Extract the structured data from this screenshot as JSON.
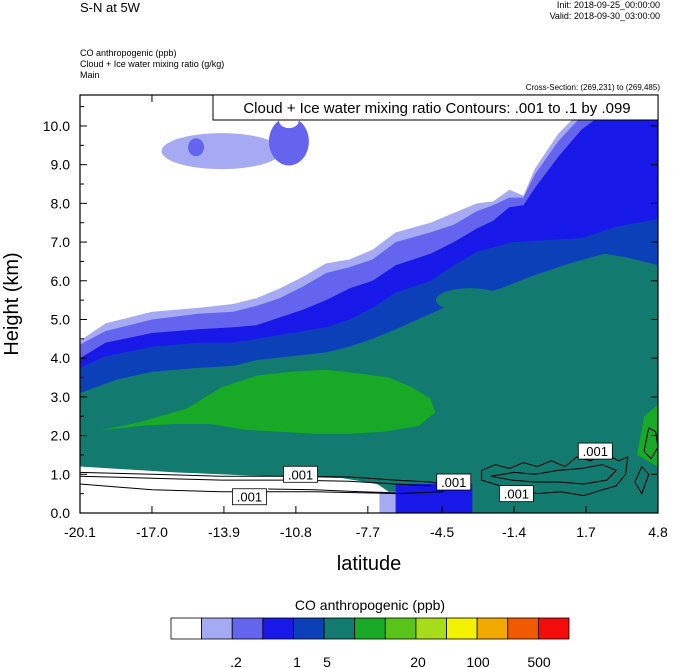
{
  "header": {
    "title": "S-N at 5W",
    "init": "Init: 2018-09-25_00:00:00",
    "valid": "Valid: 2018-09-30_03:00:00",
    "field1": "CO anthropogenic   (ppb)",
    "field2": "Cloud + Ice water mixing ratio   (g/kg)",
    "field3": "Main",
    "cross_section": "Cross-Section: (269,231) to (269,485)"
  },
  "chart_data": {
    "type": "heatmap",
    "title": "Cloud + Ice water mixing ratio Contours: .001 to .1 by .099",
    "xlabel": "latitude",
    "ylabel": "Height (km)",
    "xlim": [
      -20.1,
      4.8
    ],
    "ylim": [
      0.0,
      10.8
    ],
    "x_ticks": [
      "-20.1",
      "-17.0",
      "-13.9",
      "-10.8",
      "-7.7",
      "-4.5",
      "-1.4",
      "1.7",
      "4.8"
    ],
    "y_ticks": [
      "0.0",
      "1.0",
      "2.0",
      "3.0",
      "4.0",
      "5.0",
      "6.0",
      "7.0",
      "8.0",
      "9.0",
      "10.0"
    ],
    "contour_labels": [
      ".001",
      ".001",
      ".001",
      ".001",
      ".001"
    ],
    "colorbar": {
      "title": "CO anthropogenic  (ppb)",
      "colors": [
        "#ffffff",
        "#a6aaf2",
        "#6464ee",
        "#1818e8",
        "#0c40b8",
        "#127a6e",
        "#18aa26",
        "#5ac31a",
        "#a6dc1a",
        "#f2f202",
        "#f2aa02",
        "#f25a02",
        "#f20c0c"
      ],
      "tick_labels": [
        ".2",
        "1",
        "5",
        "20",
        "100",
        "500"
      ]
    },
    "layers": [
      {
        "level": "0.2-0.5 ppb",
        "color": "#a6aaf2",
        "x": [
          -20.1,
          -19.0,
          -17.0,
          -15.0,
          -13.5,
          -12.5,
          -11.5,
          -10.5,
          -9.5,
          -8.5,
          -7.5,
          -6.5,
          -5.0,
          -4.0,
          -3.0,
          -2.3,
          -1.6,
          -1.0,
          -0.5,
          0.5,
          1.5,
          2.5,
          4.8
        ],
        "y": [
          4.45,
          4.9,
          5.2,
          5.3,
          5.4,
          5.55,
          5.8,
          6.1,
          6.45,
          6.55,
          6.8,
          7.25,
          7.5,
          7.75,
          8.0,
          8.05,
          8.35,
          8.2,
          8.9,
          9.8,
          10.4,
          10.8,
          10.8
        ]
      },
      {
        "level": "0.5-1 ppb",
        "color": "#6464ee",
        "x": [
          -20.1,
          -19.0,
          -17.0,
          -15.0,
          -13.5,
          -12.5,
          -11.5,
          -10.5,
          -9.5,
          -8.5,
          -7.5,
          -6.5,
          -5.0,
          -4.0,
          -3.0,
          -2.3,
          -1.6,
          -1.0,
          -0.5,
          0.5,
          1.5,
          2.5,
          4.8
        ],
        "y": [
          4.35,
          4.7,
          5.0,
          5.15,
          5.2,
          5.35,
          5.55,
          5.85,
          6.2,
          6.35,
          6.55,
          7.0,
          7.25,
          7.45,
          7.8,
          7.95,
          8.15,
          8.15,
          8.75,
          9.6,
          10.25,
          10.7,
          10.8
        ]
      },
      {
        "level": "1-2 ppb",
        "color": "#1818e8",
        "x": [
          -20.1,
          -19.0,
          -17.0,
          -15.0,
          -13.5,
          -12.5,
          -11.5,
          -10.5,
          -9.5,
          -8.5,
          -7.5,
          -6.5,
          -5.0,
          -4.0,
          -3.0,
          -2.3,
          -1.6,
          -1.0,
          -0.5,
          0.5,
          1.5,
          2.5,
          4.8
        ],
        "y": [
          4.0,
          4.4,
          4.65,
          4.75,
          4.8,
          4.85,
          5.05,
          5.25,
          5.5,
          5.8,
          6.0,
          6.4,
          6.7,
          7.0,
          7.35,
          7.55,
          7.9,
          7.95,
          8.4,
          9.2,
          9.9,
          10.35,
          10.8
        ]
      },
      {
        "level": "2-5 ppb",
        "color": "#0c40b8",
        "x": [
          -20.1,
          -19.0,
          -17.0,
          -15.0,
          -13.5,
          -12.5,
          -11.5,
          -10.5,
          -9.5,
          -8.5,
          -7.5,
          -6.5,
          -5.0,
          -4.0,
          -3.0,
          -1.5,
          0.0,
          1.5,
          3.0,
          4.8
        ],
        "y": [
          3.75,
          4.05,
          4.3,
          4.4,
          4.4,
          4.5,
          4.6,
          4.7,
          4.8,
          5.0,
          5.3,
          5.7,
          6.0,
          6.4,
          6.75,
          7.0,
          7.05,
          7.1,
          7.4,
          7.6
        ]
      },
      {
        "level": "5-10 ppb",
        "color": "#127a6e",
        "x": [
          -20.1,
          -18.5,
          -17.0,
          -15.0,
          -13.5,
          -12.5,
          -11.0,
          -9.5,
          -8.5,
          -7.5,
          -6.5,
          -5.0,
          -3.5,
          -2.0,
          -0.5,
          1.0,
          2.5,
          3.5,
          4.8
        ],
        "y": [
          3.1,
          3.45,
          3.65,
          3.75,
          3.8,
          3.95,
          4.05,
          4.15,
          4.3,
          4.5,
          4.75,
          5.15,
          5.55,
          5.8,
          6.15,
          6.45,
          6.7,
          6.6,
          6.4
        ]
      },
      {
        "level": "10-20 ppb",
        "color": "#18aa26",
        "x": [
          -19.5,
          -17.5,
          -15.5,
          -14.0,
          -12.5,
          -11.0,
          -9.5,
          -8.0,
          -6.8,
          -5.8,
          -5.0,
          -4.8,
          -5.5,
          -7.0,
          -8.5,
          -10.0,
          -11.5,
          -13.0,
          -14.5,
          -16.0,
          -17.5,
          -19.0
        ],
        "y": [
          2.1,
          2.35,
          2.7,
          3.25,
          3.55,
          3.65,
          3.7,
          3.6,
          3.5,
          3.25,
          2.95,
          2.6,
          2.25,
          2.1,
          2.05,
          2.05,
          2.1,
          2.15,
          2.3,
          2.3,
          2.25,
          2.15
        ]
      },
      {
        "level": "sparse green cells",
        "color": "#18aa26",
        "x": [
          4.2,
          4.8,
          4.8,
          3.9
        ],
        "y": [
          2.5,
          2.8,
          1.2,
          1.5
        ]
      }
    ]
  }
}
